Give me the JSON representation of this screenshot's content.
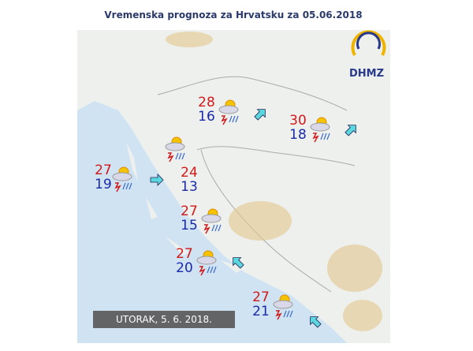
{
  "header": {
    "title": "Vremenska prognoza za Hrvatsku za 05.06.2018"
  },
  "map": {
    "logo": "DHMZ",
    "date_label": "UTORAK, 5. 6. 2018.",
    "stations": [
      {
        "max": 28,
        "min": 16
      },
      {
        "max": 30,
        "min": 18
      },
      {
        "max": 27,
        "min": 19
      },
      {
        "max": 24,
        "min": 13
      },
      {
        "max": 27,
        "min": 15
      },
      {
        "max": 27,
        "min": 20
      },
      {
        "max": 27,
        "min": 21
      }
    ]
  }
}
